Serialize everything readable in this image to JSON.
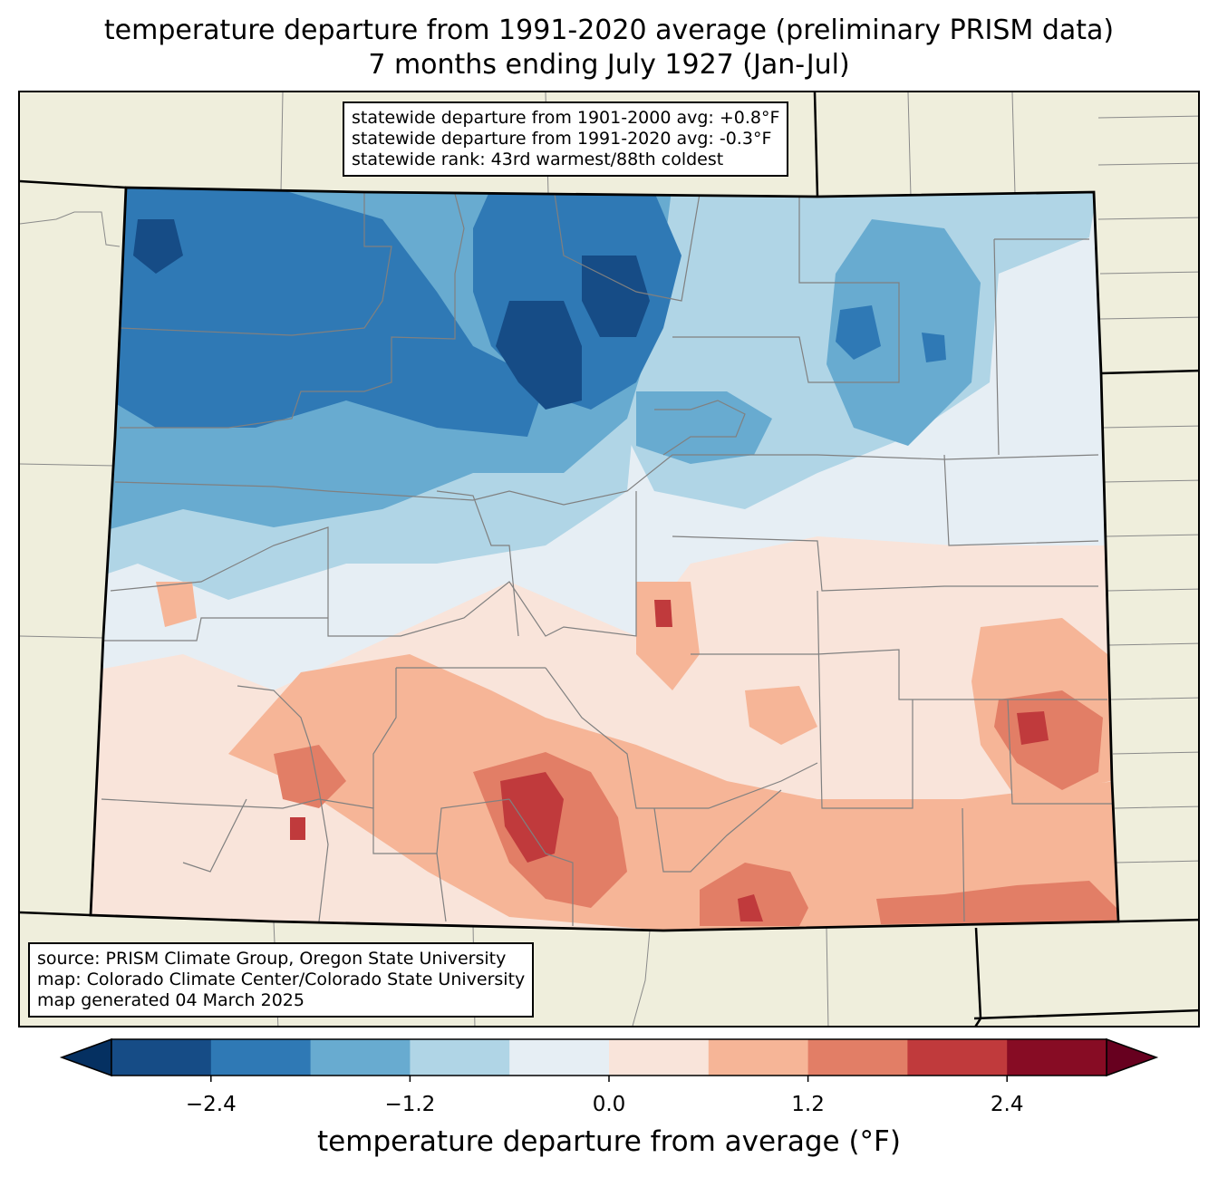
{
  "title": {
    "line1": "temperature departure from 1991-2020 average (preliminary PRISM data)",
    "line2": "7 months ending July 1927 (Jan-Jul)"
  },
  "stats": {
    "line1": "statewide departure from 1901-2000 avg: +0.8°F",
    "line2": "statewide departure from 1991-2020 avg: -0.3°F",
    "line3": "statewide rank: 43rd warmest/88th coldest"
  },
  "source": {
    "line1": "source: PRISM Climate Group, Oregon State University",
    "line2": "map: Colorado Climate Center/Colorado State University",
    "line3": "map generated 04 March 2025"
  },
  "colorbar": {
    "label": "temperature departure from average (°F)",
    "bounds": [
      -3.0,
      -2.4,
      -1.8,
      -1.2,
      -0.6,
      0.0,
      0.6,
      1.2,
      1.8,
      2.4,
      3.0
    ],
    "colors": [
      "#164c86",
      "#2f79b5",
      "#68abd0",
      "#b0d5e6",
      "#e6eef4",
      "#f9e4da",
      "#f6b597",
      "#e27e66",
      "#c03a3c",
      "#870c24"
    ],
    "under_color": "#053061",
    "over_color": "#67001f",
    "ticks": [
      {
        "value": -2.4,
        "label": "−2.4"
      },
      {
        "value": -1.2,
        "label": "−1.2"
      },
      {
        "value": 0.0,
        "label": "0.0"
      },
      {
        "value": 1.2,
        "label": "1.2"
      },
      {
        "value": 2.4,
        "label": "2.4"
      }
    ]
  },
  "map": {
    "region": "Colorado",
    "land_color": "#efeedc",
    "county_line_color": "#808080"
  }
}
